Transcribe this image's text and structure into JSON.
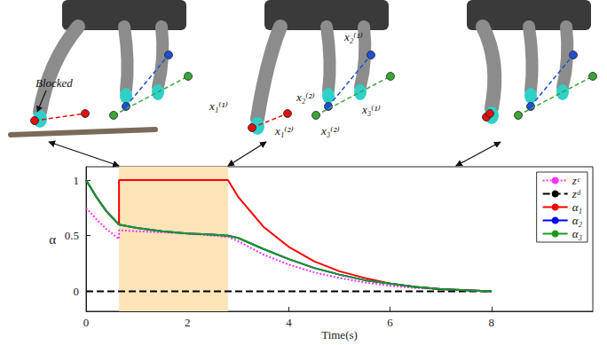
{
  "chart_data": {
    "type": "line",
    "x_label": "Time(s)",
    "y_label": "α",
    "x": [
      0,
      0.2,
      0.4,
      0.65,
      0.65,
      1,
      1.5,
      2,
      2.5,
      2.8,
      3,
      3.5,
      4,
      4.5,
      5,
      5.5,
      6,
      6.5,
      7,
      7.5,
      8
    ],
    "xlim": [
      0,
      10
    ],
    "xticks": [
      0,
      2,
      4,
      6,
      8
    ],
    "ylim": [
      -0.18,
      1.12
    ],
    "yticks": [
      0,
      0.5,
      1
    ],
    "grid": false,
    "legend": "upper right",
    "highlight": {
      "x": [
        0.65,
        2.8
      ],
      "color": "#fde3b8"
    },
    "series": [
      {
        "name": "zᶜ",
        "color": "#ff33ff",
        "line_style": "dotted",
        "values": [
          0.75,
          0.65,
          0.56,
          0.47,
          0.55,
          0.54,
          0.53,
          0.52,
          0.5,
          0.49,
          0.45,
          0.33,
          0.24,
          0.17,
          0.12,
          0.08,
          0.05,
          0.03,
          0.02,
          0.01,
          0
        ]
      },
      {
        "name": "zᵈ",
        "color": "#000000",
        "line_style": "dashed",
        "values": [
          0,
          0,
          0,
          0,
          0,
          0,
          0,
          0,
          0,
          0,
          0,
          0,
          0,
          0,
          0,
          0,
          0,
          0,
          0,
          0,
          0
        ]
      },
      {
        "name": "α₁",
        "color": "#ff0000",
        "line_style": "solid",
        "values": [
          1,
          0.85,
          0.72,
          0.6,
          1,
          1,
          1,
          1,
          1,
          1,
          0.85,
          0.58,
          0.4,
          0.27,
          0.18,
          0.12,
          0.07,
          0.04,
          0.02,
          0.01,
          0
        ]
      },
      {
        "name": "α₂",
        "color": "#0000ff",
        "line_style": "solid",
        "values": [
          1,
          0.85,
          0.72,
          0.6,
          0.6,
          0.57,
          0.54,
          0.52,
          0.51,
          0.5,
          0.48,
          0.38,
          0.29,
          0.21,
          0.15,
          0.1,
          0.07,
          0.04,
          0.02,
          0.01,
          0
        ]
      },
      {
        "name": "α₃",
        "color": "#1a9b1a",
        "line_style": "solid",
        "values": [
          1,
          0.85,
          0.72,
          0.6,
          0.6,
          0.57,
          0.54,
          0.52,
          0.51,
          0.5,
          0.48,
          0.38,
          0.29,
          0.21,
          0.15,
          0.1,
          0.07,
          0.04,
          0.02,
          0.01,
          0
        ]
      }
    ]
  },
  "figure": {
    "panels": [
      {
        "time": 0.65,
        "annotation": "Blocked"
      },
      {
        "time": 2.8,
        "point_labels": [
          "x₂⁽¹⁾",
          "x₂⁽²⁾",
          "x₃⁽¹⁾",
          "x₁⁽¹⁾",
          "x₁⁽²⁾",
          "x₃⁽²⁾"
        ]
      },
      {
        "time": 7.3
      }
    ]
  }
}
